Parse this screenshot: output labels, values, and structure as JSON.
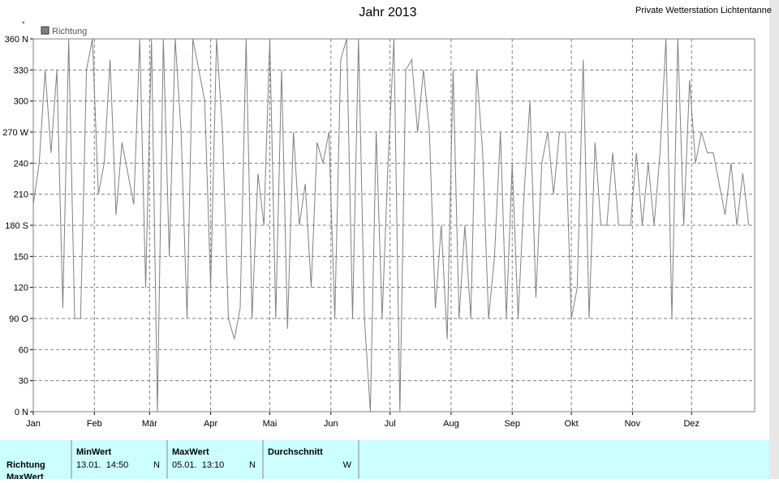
{
  "chart_data": {
    "type": "line",
    "title": "Jahr 2013",
    "station": "Private Wetterstation Lichtentanne",
    "y_unit": "°",
    "legend": "top-left",
    "grid": true,
    "xlim": [
      1,
      367
    ],
    "xticks": [
      {
        "value": 1,
        "label": "Jan"
      },
      {
        "value": 32,
        "label": "Feb"
      },
      {
        "value": 60,
        "label": "Mär"
      },
      {
        "value": 91,
        "label": "Apr"
      },
      {
        "value": 121,
        "label": "Mai"
      },
      {
        "value": 152,
        "label": "Jun"
      },
      {
        "value": 182,
        "label": "Jul"
      },
      {
        "value": 213,
        "label": "Aug"
      },
      {
        "value": 244,
        "label": "Sep"
      },
      {
        "value": 274,
        "label": "Okt"
      },
      {
        "value": 305,
        "label": "Nov"
      },
      {
        "value": 335,
        "label": "Dez"
      }
    ],
    "ylim": [
      0,
      360
    ],
    "yticks": [
      {
        "value": 0,
        "label": "0 N"
      },
      30,
      60,
      {
        "value": 90,
        "label": "90 O"
      },
      120,
      150,
      {
        "value": 180,
        "label": "180 S"
      },
      210,
      240,
      {
        "value": 270,
        "label": "270 W"
      },
      300,
      330,
      {
        "value": 360,
        "label": "360 N"
      }
    ],
    "x": [
      1,
      4,
      7,
      10,
      13,
      16,
      19,
      22,
      25,
      28,
      31,
      34,
      37,
      40,
      43,
      46,
      49,
      52,
      55,
      58,
      61,
      64,
      67,
      70,
      73,
      76,
      79,
      82,
      85,
      88,
      91,
      94,
      97,
      100,
      103,
      106,
      109,
      112,
      115,
      118,
      121,
      124,
      127,
      130,
      133,
      136,
      139,
      142,
      145,
      148,
      151,
      154,
      157,
      160,
      163,
      166,
      169,
      172,
      175,
      178,
      181,
      184,
      187,
      190,
      193,
      196,
      199,
      202,
      205,
      208,
      211,
      214,
      217,
      220,
      223,
      226,
      229,
      232,
      235,
      238,
      241,
      244,
      247,
      250,
      253,
      256,
      259,
      262,
      265,
      268,
      271,
      274,
      277,
      280,
      283,
      286,
      289,
      292,
      295,
      298,
      301,
      304,
      307,
      310,
      313,
      316,
      319,
      322,
      325,
      328,
      331,
      334,
      337,
      340,
      343,
      346,
      349,
      352,
      355,
      358,
      361,
      364
    ],
    "series": [
      {
        "name": "Richtung",
        "color": "#808080",
        "values": [
          200,
          240,
          330,
          250,
          330,
          100,
          360,
          90,
          90,
          330,
          360,
          210,
          240,
          340,
          190,
          260,
          230,
          200,
          360,
          120,
          360,
          0,
          360,
          150,
          360,
          270,
          90,
          360,
          330,
          300,
          120,
          360,
          270,
          90,
          70,
          100,
          360,
          90,
          230,
          180,
          360,
          90,
          330,
          80,
          270,
          180,
          220,
          120,
          260,
          240,
          270,
          90,
          340,
          360,
          90,
          360,
          90,
          0,
          270,
          90,
          240,
          360,
          0,
          330,
          340,
          270,
          330,
          270,
          100,
          180,
          70,
          330,
          90,
          180,
          90,
          330,
          250,
          90,
          150,
          270,
          90,
          240,
          90,
          210,
          300,
          110,
          240,
          270,
          210,
          270,
          270,
          90,
          120,
          340,
          90,
          260,
          180,
          180,
          250,
          180,
          180,
          180,
          250,
          180,
          240,
          180,
          250,
          360,
          90,
          360,
          180,
          320,
          240,
          270,
          250,
          250,
          220,
          190,
          240,
          180,
          230,
          180
        ]
      }
    ]
  },
  "table": {
    "header": [
      "MinWert",
      "MaxWert",
      "Durchschnitt"
    ],
    "rows": [
      [
        "Richtung",
        "13.01.  14:50",
        "N",
        "05.01.  13:10",
        "N",
        "W"
      ],
      [
        "MaxWert"
      ]
    ]
  }
}
